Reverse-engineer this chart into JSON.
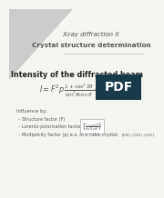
{
  "title_line1": "X-ray diffraction II",
  "title_line2": "Crystal structure determination",
  "section_title": "Intensity of the diffracted beam",
  "influence_header": "Influence by:",
  "bullet1": "– Structure factor (F)",
  "bullet2": "– Lorentz-polarisation factor",
  "bullet3": "– Multiplicity factor (p) e.a. in a cubic crystal:",
  "bullet3_indices": "{100},{010},{001}",
  "bg_color": "#f5f5f0",
  "title_color": "#555555",
  "text_color": "#555555",
  "section_color": "#222222",
  "pdf_bg": "#1a3a4a",
  "pdf_text": "#ffffff"
}
